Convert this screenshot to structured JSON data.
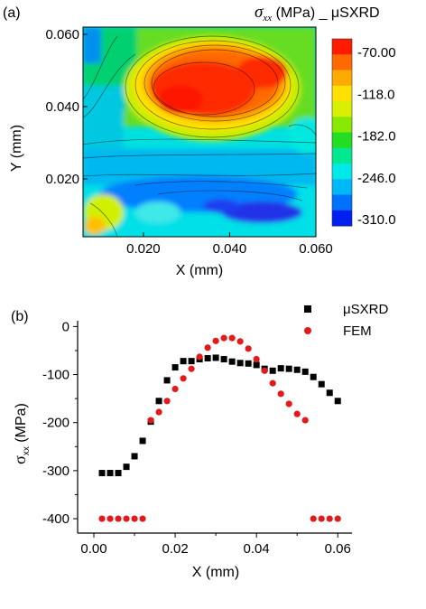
{
  "chart_data": [
    {
      "type": "heatmap",
      "panel_label": "(a)",
      "title_symbol": "σ",
      "title_subscript": "xx",
      "title_rest": " (MPa) _ μSXRD",
      "xlabel": "X (mm)",
      "ylabel": "Y (mm)",
      "xlim": [
        0.006,
        0.06
      ],
      "ylim": [
        0.004,
        0.062
      ],
      "xticks": [
        "0.020",
        "0.040",
        "0.060"
      ],
      "xtick_values": [
        0.02,
        0.04,
        0.06
      ],
      "yticks": [
        "0.060",
        "0.040",
        "0.020"
      ],
      "ytick_values": [
        0.06,
        0.04,
        0.02
      ],
      "colorbar_labels": [
        "-70.00",
        "-118.0",
        "-182.0",
        "-246.0",
        "-310.0"
      ],
      "colorbar_colors": [
        "#ff1a00",
        "#ff6a00",
        "#ffaa00",
        "#ffe000",
        "#d8f000",
        "#88e800",
        "#22dd22",
        "#00e890",
        "#00e8e8",
        "#00b8f8",
        "#0070ff",
        "#0020f0"
      ],
      "grid": false
    },
    {
      "type": "scatter",
      "panel_label": "(b)",
      "xlabel": "X (mm)",
      "ylabel_symbol": "σ",
      "ylabel_subscript": "xx",
      "ylabel_rest": " (MPa)",
      "xlim": [
        -0.004,
        0.0635
      ],
      "ylim": [
        -430,
        12
      ],
      "xticks": [
        0.0,
        0.02,
        0.04,
        0.06
      ],
      "xtick_labels": [
        "0.00",
        "0.02",
        "0.04",
        "0.06"
      ],
      "yticks": [
        0,
        -100,
        -200,
        -300,
        -400
      ],
      "ytick_labels": [
        "0",
        "-100",
        "-200",
        "-300",
        "-400"
      ],
      "legend_position": "top-right",
      "grid": false,
      "series": [
        {
          "name": "μSXRD",
          "marker": "square",
          "color": "#000000",
          "x": [
            0.002,
            0.004,
            0.006,
            0.008,
            0.01,
            0.012,
            0.014,
            0.016,
            0.018,
            0.02,
            0.022,
            0.024,
            0.026,
            0.028,
            0.03,
            0.032,
            0.034,
            0.036,
            0.038,
            0.04,
            0.042,
            0.044,
            0.046,
            0.048,
            0.05,
            0.052,
            0.054,
            0.056,
            0.058,
            0.06
          ],
          "y": [
            -305,
            -305,
            -305,
            -292,
            -270,
            -238,
            -198,
            -155,
            -112,
            -85,
            -72,
            -72,
            -68,
            -66,
            -65,
            -68,
            -73,
            -76,
            -77,
            -80,
            -88,
            -92,
            -87,
            -88,
            -90,
            -94,
            -105,
            -120,
            -138,
            -155
          ]
        },
        {
          "name": "FEM",
          "marker": "circle",
          "color": "#e31a1c",
          "x": [
            0.002,
            0.004,
            0.006,
            0.008,
            0.01,
            0.012,
            0.014,
            0.016,
            0.018,
            0.02,
            0.022,
            0.024,
            0.026,
            0.028,
            0.03,
            0.032,
            0.034,
            0.036,
            0.038,
            0.04,
            0.042,
            0.044,
            0.046,
            0.048,
            0.05,
            0.052,
            0.054,
            0.056,
            0.058,
            0.06
          ],
          "y": [
            -400,
            -400,
            -400,
            -400,
            -400,
            -400,
            -195,
            -178,
            -155,
            -130,
            -108,
            -88,
            -63,
            -44,
            -30,
            -24,
            -24,
            -31,
            -46,
            -68,
            -92,
            -118,
            -140,
            -161,
            -182,
            -195,
            -400,
            -400,
            -400,
            -400
          ]
        }
      ]
    }
  ]
}
